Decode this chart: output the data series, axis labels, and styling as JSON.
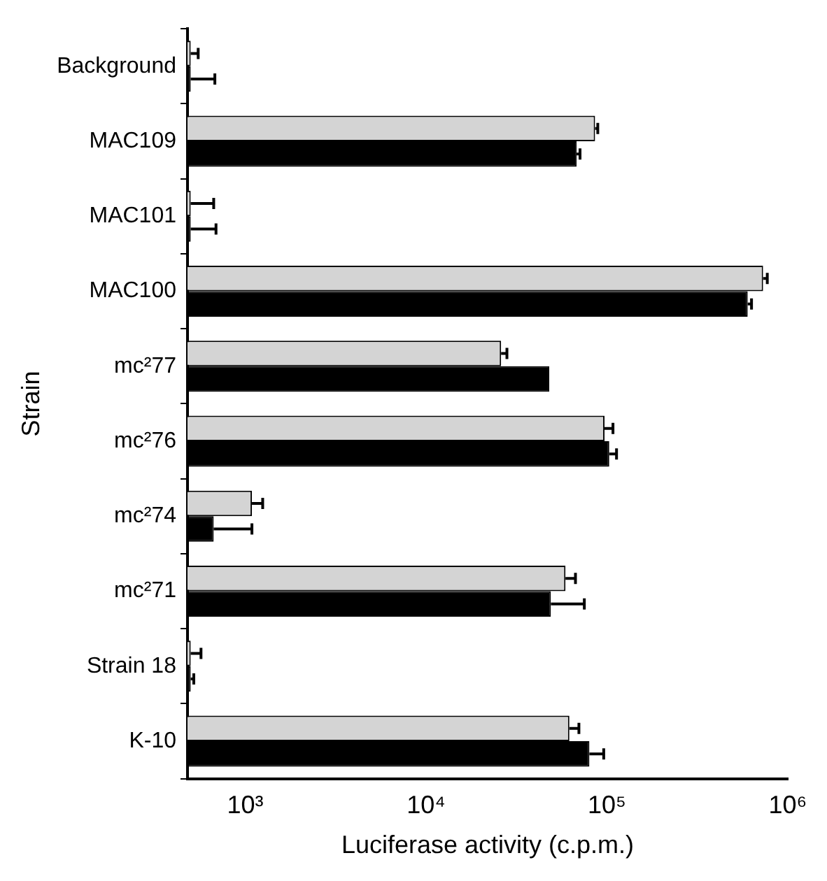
{
  "chart_data": {
    "type": "bar",
    "orientation": "horizontal",
    "xlabel": "Luciferase activity (c.p.m.)",
    "ylabel": "Strain",
    "categories": [
      "Background",
      "MAC109",
      "MAC101",
      "MAC100",
      "mc²77",
      "mc²76",
      "mc²74",
      "mc²71",
      "Strain 18",
      "K-10"
    ],
    "series": [
      {
        "color": "#d4d4d4",
        "values": [
          500,
          86000,
          500,
          730000,
          26000,
          97000,
          1090,
          59000,
          500,
          62000
        ],
        "errors": [
          [
            500,
            550
          ],
          [
            86000,
            89000
          ],
          [
            500,
            670
          ],
          [
            730000,
            770000
          ],
          [
            26000,
            28000
          ],
          [
            97000,
            108000
          ],
          [
            1090,
            1250
          ],
          [
            59000,
            67000
          ],
          [
            500,
            570
          ],
          [
            62000,
            70000
          ]
        ]
      },
      {
        "color": "#000000",
        "values": [
          500,
          68000,
          500,
          600000,
          48000,
          103000,
          670,
          49000,
          500,
          80000
        ],
        "errors": [
          [
            500,
            680
          ],
          [
            68000,
            71000
          ],
          [
            500,
            690
          ],
          [
            600000,
            630000
          ],
          null,
          [
            103000,
            113000
          ],
          [
            670,
            1090
          ],
          [
            49000,
            75000
          ],
          [
            500,
            520
          ],
          [
            80000,
            96000
          ]
        ]
      }
    ],
    "log": "x",
    "xlim": [
      480,
      1000000
    ],
    "xticks": [
      {
        "value": 1000,
        "label": "10³"
      },
      {
        "value": 10000,
        "label": "10⁴"
      },
      {
        "value": 100000,
        "label": "10⁵"
      },
      {
        "value": 1000000,
        "label": "10⁶"
      }
    ],
    "grid": false,
    "legend": false
  }
}
